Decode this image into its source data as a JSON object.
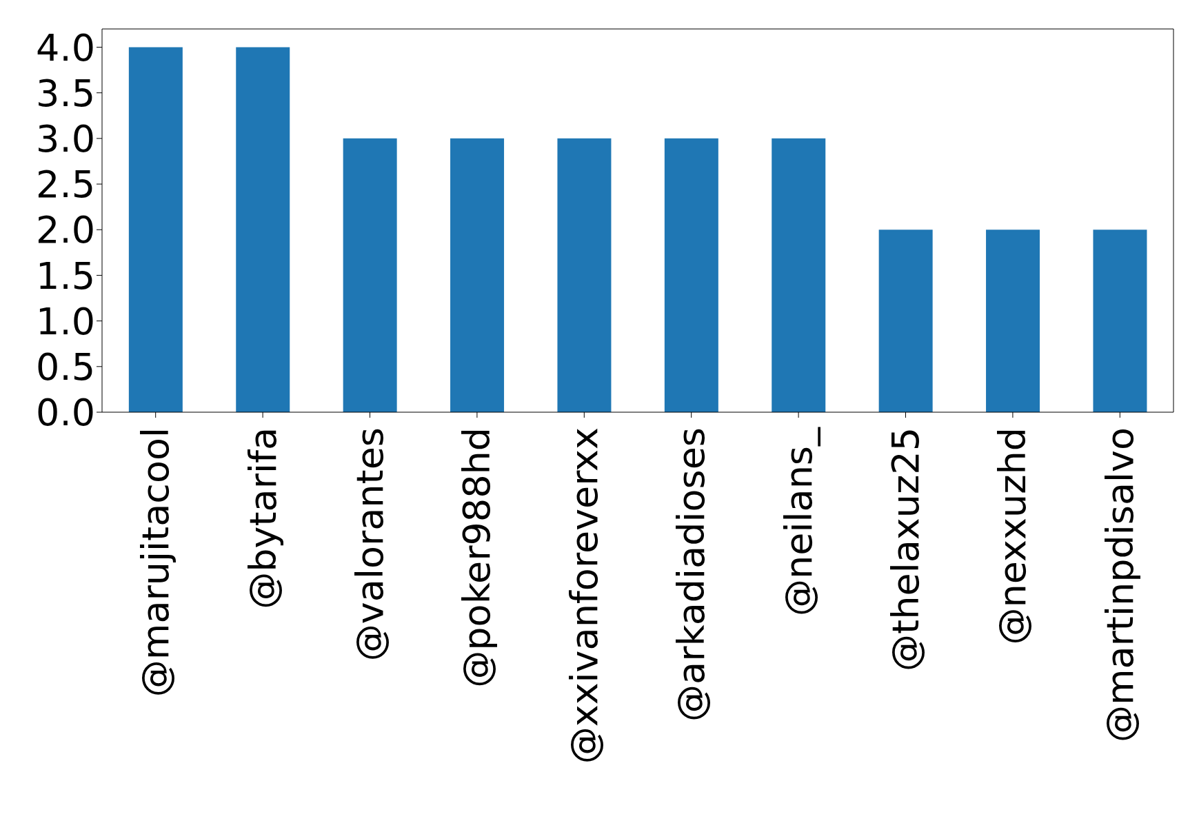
{
  "chart_data": {
    "type": "bar",
    "categories": [
      "@marujitacool",
      "@bytarifa",
      "@valorantes",
      "@poker988hd",
      "@xxivanforeverxx",
      "@arkadiadioses",
      "@neilans_",
      "@thelaxuz25",
      "@nexxuzhd",
      "@martinpdisalvo"
    ],
    "values": [
      4,
      4,
      3,
      3,
      3,
      3,
      3,
      2,
      2,
      2
    ],
    "color": "#1f77b4",
    "ylim": [
      0,
      4.2
    ],
    "yticks": [
      {
        "value": 0,
        "label": "0.0"
      },
      {
        "value": 0.5,
        "label": "0.5"
      },
      {
        "value": 1,
        "label": "1.0"
      },
      {
        "value": 1.5,
        "label": "1.5"
      },
      {
        "value": 2,
        "label": "2.0"
      },
      {
        "value": 2.5,
        "label": "2.5"
      },
      {
        "value": 3,
        "label": "3.0"
      },
      {
        "value": 3.5,
        "label": "3.5"
      },
      {
        "value": 4,
        "label": "4.0"
      }
    ],
    "grid": false
  }
}
